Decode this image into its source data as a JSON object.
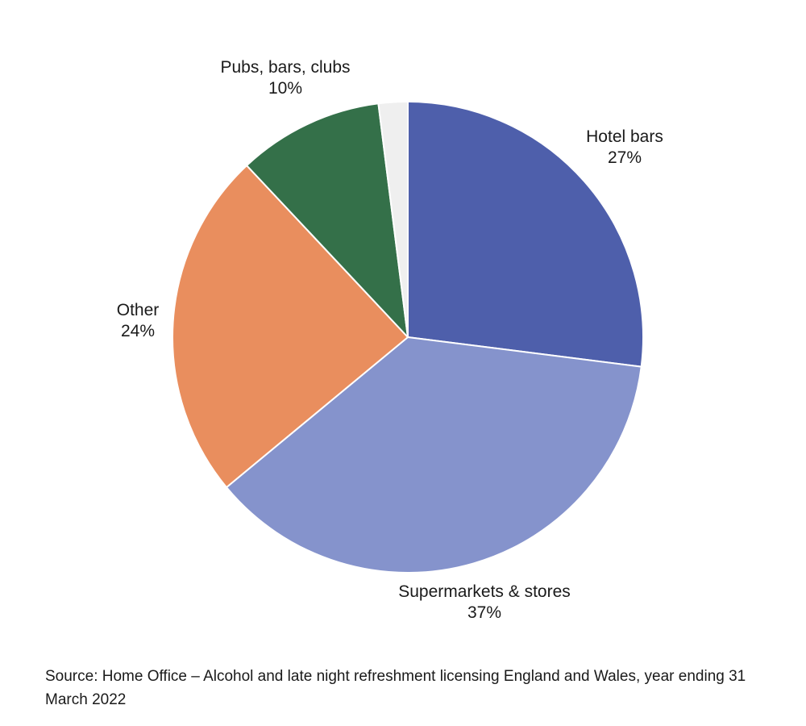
{
  "chart_data": {
    "type": "pie",
    "start_angle_deg": 0,
    "direction": "clockwise",
    "slices": [
      {
        "label": "Hotel bars",
        "value": 27,
        "value_label": "27%",
        "color": "#4e5fab"
      },
      {
        "label": "Supermarkets & stores",
        "value": 37,
        "value_label": "37%",
        "color": "#8593cc"
      },
      {
        "label": "Other",
        "value": 24,
        "value_label": "24%",
        "color": "#e98e5e"
      },
      {
        "label": "Pubs, bars, clubs",
        "value": 10,
        "value_label": "10%",
        "color": "#347049"
      },
      {
        "label": "",
        "value": 2,
        "value_label": "",
        "color": "#efefef"
      }
    ]
  },
  "source": "Source: Home Office – Alcohol and late night refreshment licensing England and Wales, year ending 31 March 2022"
}
